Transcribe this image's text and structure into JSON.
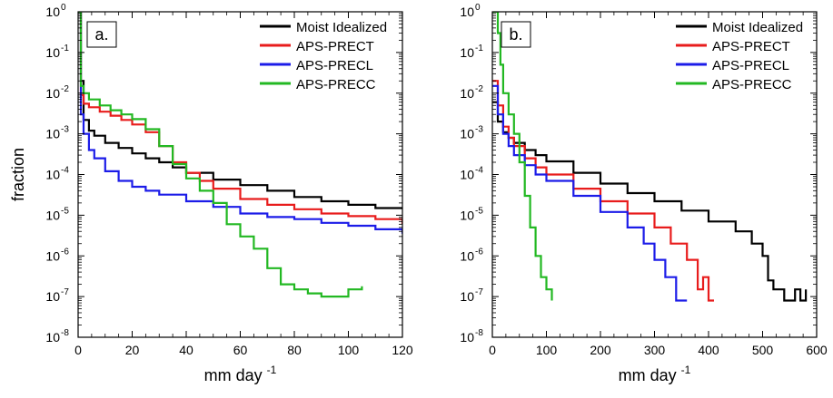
{
  "chart_data": [
    {
      "type": "line",
      "panel_label": "a.",
      "xlabel": "mm day",
      "xlabel_sup": "-1",
      "ylabel": "fraction",
      "xlim": [
        0,
        120
      ],
      "ylim": [
        1e-08,
        1
      ],
      "yscale": "log",
      "x_ticks": [
        "0",
        "20",
        "40",
        "60",
        "80",
        "100",
        "120"
      ],
      "y_ticks": [
        {
          "base": "10",
          "exp": "0"
        },
        {
          "base": "10",
          "exp": "-1"
        },
        {
          "base": "10",
          "exp": "-2"
        },
        {
          "base": "10",
          "exp": "-3"
        },
        {
          "base": "10",
          "exp": "-4"
        },
        {
          "base": "10",
          "exp": "-5"
        },
        {
          "base": "10",
          "exp": "-6"
        },
        {
          "base": "10",
          "exp": "-7"
        },
        {
          "base": "10",
          "exp": "-8"
        }
      ],
      "legend_position": "top-right",
      "series": [
        {
          "name": "Moist Idealized",
          "color": "#000000",
          "points": [
            [
              0,
              1
            ],
            [
              1,
              0.02
            ],
            [
              2,
              0.0022
            ],
            [
              4,
              0.0012
            ],
            [
              6,
              0.0009
            ],
            [
              10,
              0.0006
            ],
            [
              15,
              0.00045
            ],
            [
              20,
              0.00033
            ],
            [
              25,
              0.00025
            ],
            [
              30,
              0.0002
            ],
            [
              35,
              0.00015
            ],
            [
              40,
              0.00011
            ],
            [
              50,
              7.5e-05
            ],
            [
              60,
              5.5e-05
            ],
            [
              70,
              4e-05
            ],
            [
              80,
              2.8e-05
            ],
            [
              90,
              2.2e-05
            ],
            [
              100,
              1.8e-05
            ],
            [
              110,
              1.5e-05
            ],
            [
              120,
              1.4e-05
            ]
          ]
        },
        {
          "name": "APS-PRECT",
          "color": "#e81c1c",
          "points": [
            [
              0,
              1
            ],
            [
              1,
              0.009
            ],
            [
              2,
              0.0055
            ],
            [
              4,
              0.0045
            ],
            [
              8,
              0.0035
            ],
            [
              12,
              0.0028
            ],
            [
              16,
              0.0022
            ],
            [
              20,
              0.0017
            ],
            [
              25,
              0.0011
            ],
            [
              30,
              0.0005
            ],
            [
              35,
              0.0002
            ],
            [
              40,
              0.00011
            ],
            [
              45,
              7e-05
            ],
            [
              50,
              4.5e-05
            ],
            [
              60,
              2.5e-05
            ],
            [
              70,
              1.8e-05
            ],
            [
              80,
              1.4e-05
            ],
            [
              90,
              1.1e-05
            ],
            [
              100,
              9.5e-06
            ],
            [
              110,
              8e-06
            ],
            [
              120,
              6e-06
            ]
          ]
        },
        {
          "name": "APS-PRECL",
          "color": "#1c1ce8",
          "points": [
            [
              0,
              1
            ],
            [
              1,
              0.003
            ],
            [
              2,
              0.001
            ],
            [
              4,
              0.0004
            ],
            [
              6,
              0.00025
            ],
            [
              10,
              0.00012
            ],
            [
              15,
              7e-05
            ],
            [
              20,
              5e-05
            ],
            [
              25,
              4e-05
            ],
            [
              30,
              3.2e-05
            ],
            [
              40,
              2.2e-05
            ],
            [
              50,
              1.6e-05
            ],
            [
              60,
              1.1e-05
            ],
            [
              70,
              9e-06
            ],
            [
              80,
              8e-06
            ],
            [
              90,
              6.5e-06
            ],
            [
              100,
              5.5e-06
            ],
            [
              110,
              4.5e-06
            ],
            [
              120,
              3.5e-06
            ]
          ]
        },
        {
          "name": "APS-PRECC",
          "color": "#22b822",
          "points": [
            [
              0,
              1
            ],
            [
              1,
              0.015
            ],
            [
              2,
              0.01
            ],
            [
              4,
              0.007
            ],
            [
              8,
              0.005
            ],
            [
              12,
              0.0038
            ],
            [
              16,
              0.003
            ],
            [
              20,
              0.0023
            ],
            [
              25,
              0.0013
            ],
            [
              30,
              0.0005
            ],
            [
              35,
              0.00018
            ],
            [
              40,
              8e-05
            ],
            [
              45,
              4e-05
            ],
            [
              50,
              2e-05
            ],
            [
              55,
              6e-06
            ],
            [
              60,
              3e-06
            ],
            [
              65,
              1.5e-06
            ],
            [
              70,
              5e-07
            ],
            [
              75,
              2e-07
            ],
            [
              80,
              1.5e-07
            ],
            [
              85,
              1.2e-07
            ],
            [
              90,
              1e-07
            ],
            [
              95,
              1e-07
            ],
            [
              100,
              1.5e-07
            ],
            [
              105,
              1.8e-07
            ]
          ]
        }
      ]
    },
    {
      "type": "line",
      "panel_label": "b.",
      "xlabel": "mm day",
      "xlabel_sup": "-1",
      "ylabel": "",
      "xlim": [
        0,
        600
      ],
      "ylim": [
        1e-08,
        1
      ],
      "yscale": "log",
      "x_ticks": [
        "0",
        "100",
        "200",
        "300",
        "400",
        "500",
        "600"
      ],
      "y_ticks": [
        {
          "base": "10",
          "exp": "0"
        },
        {
          "base": "10",
          "exp": "-1"
        },
        {
          "base": "10",
          "exp": "-2"
        },
        {
          "base": "10",
          "exp": "-3"
        },
        {
          "base": "10",
          "exp": "-4"
        },
        {
          "base": "10",
          "exp": "-5"
        },
        {
          "base": "10",
          "exp": "-6"
        },
        {
          "base": "10",
          "exp": "-7"
        },
        {
          "base": "10",
          "exp": "-8"
        }
      ],
      "legend_position": "top-right",
      "series": [
        {
          "name": "Moist Idealized",
          "color": "#000000",
          "points": [
            [
              0,
              0.006
            ],
            [
              10,
              0.002
            ],
            [
              20,
              0.0011
            ],
            [
              30,
              0.0008
            ],
            [
              40,
              0.0006
            ],
            [
              60,
              0.0004
            ],
            [
              80,
              0.0003
            ],
            [
              100,
              0.00021
            ],
            [
              150,
              0.00011
            ],
            [
              200,
              6e-05
            ],
            [
              250,
              3.5e-05
            ],
            [
              300,
              2.2e-05
            ],
            [
              350,
              1.3e-05
            ],
            [
              400,
              7e-06
            ],
            [
              450,
              4e-06
            ],
            [
              480,
              2e-06
            ],
            [
              500,
              1e-06
            ],
            [
              510,
              2.5e-07
            ],
            [
              520,
              1.5e-07
            ],
            [
              540,
              8e-08
            ],
            [
              560,
              1.5e-07
            ],
            [
              570,
              8e-08
            ],
            [
              580,
              1.5e-07
            ]
          ]
        },
        {
          "name": "APS-PRECT",
          "color": "#e81c1c",
          "points": [
            [
              0,
              0.02
            ],
            [
              10,
              0.005
            ],
            [
              20,
              0.0015
            ],
            [
              30,
              0.0008
            ],
            [
              40,
              0.0005
            ],
            [
              60,
              0.00025
            ],
            [
              80,
              0.00015
            ],
            [
              100,
              0.0001
            ],
            [
              150,
              4.5e-05
            ],
            [
              200,
              2.2e-05
            ],
            [
              250,
              1.1e-05
            ],
            [
              300,
              5e-06
            ],
            [
              330,
              2e-06
            ],
            [
              360,
              8e-07
            ],
            [
              380,
              1.5e-07
            ],
            [
              390,
              3e-07
            ],
            [
              400,
              8e-08
            ],
            [
              410,
              8e-08
            ]
          ]
        },
        {
          "name": "APS-PRECL",
          "color": "#1c1ce8",
          "points": [
            [
              0,
              0.015
            ],
            [
              10,
              0.003
            ],
            [
              20,
              0.001
            ],
            [
              30,
              0.0005
            ],
            [
              40,
              0.0003
            ],
            [
              60,
              0.00017
            ],
            [
              80,
              0.0001
            ],
            [
              100,
              7e-05
            ],
            [
              150,
              3e-05
            ],
            [
              200,
              1.2e-05
            ],
            [
              250,
              5e-06
            ],
            [
              280,
              2e-06
            ],
            [
              300,
              8e-07
            ],
            [
              320,
              3e-07
            ],
            [
              340,
              8e-08
            ],
            [
              360,
              8e-08
            ]
          ]
        },
        {
          "name": "APS-PRECC",
          "color": "#22b822",
          "points": [
            [
              0,
              1
            ],
            [
              10,
              0.3
            ],
            [
              15,
              0.05
            ],
            [
              20,
              0.01
            ],
            [
              30,
              0.003
            ],
            [
              40,
              0.001
            ],
            [
              50,
              0.0002
            ],
            [
              60,
              3e-05
            ],
            [
              70,
              5e-06
            ],
            [
              80,
              1e-06
            ],
            [
              90,
              3e-07
            ],
            [
              100,
              1.5e-07
            ],
            [
              110,
              8e-08
            ]
          ]
        }
      ]
    }
  ]
}
